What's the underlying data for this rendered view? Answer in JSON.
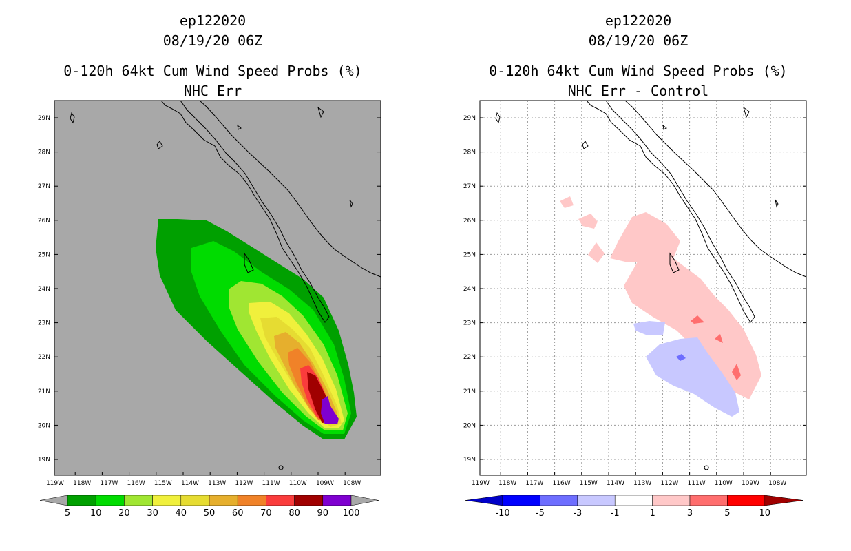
{
  "panels": [
    {
      "id": "left",
      "storm_id": "ep122020",
      "datetime": "08/19/20 06Z",
      "product": "0-120h 64kt Cum Wind Speed Probs (%)",
      "subtitle": "NHC Err",
      "background": "#a8a8a8",
      "colorbar": {
        "labels": [
          "5",
          "10",
          "20",
          "30",
          "40",
          "50",
          "60",
          "70",
          "80",
          "90",
          "100"
        ],
        "colors": [
          "#00a000",
          "#00dc00",
          "#a0e632",
          "#e6dc32",
          "#e6af2d",
          "#f08228",
          "#fa3c3c",
          "#f0f0f0",
          "#a00000",
          "#7f00d0"
        ]
      }
    },
    {
      "id": "right",
      "storm_id": "ep122020",
      "datetime": "08/19/20 06Z",
      "product": "0-120h 64kt Cum Wind Speed Probs (%)",
      "subtitle": "NHC Err - Control",
      "background": "#ffffff",
      "colorbar": {
        "labels": [
          "-10",
          "-5",
          "-3",
          "-1",
          "1",
          "3",
          "5",
          "10"
        ],
        "colors": [
          "#0000c8",
          "#0000ff",
          "#6e6eff",
          "#c8c8ff",
          "#ffffff",
          "#ffc8c8",
          "#ff6e6e",
          "#ff0000",
          "#a00000"
        ]
      }
    }
  ],
  "axes": {
    "lon_labels": [
      "119W",
      "118W",
      "117W",
      "116W",
      "115W",
      "114W",
      "113W",
      "112W",
      "111W",
      "110W",
      "109W",
      "108W"
    ],
    "lat_labels": [
      "29N",
      "28N",
      "27N",
      "26N",
      "25N",
      "24N",
      "23N",
      "22N",
      "21N",
      "20N",
      "19N"
    ]
  }
}
